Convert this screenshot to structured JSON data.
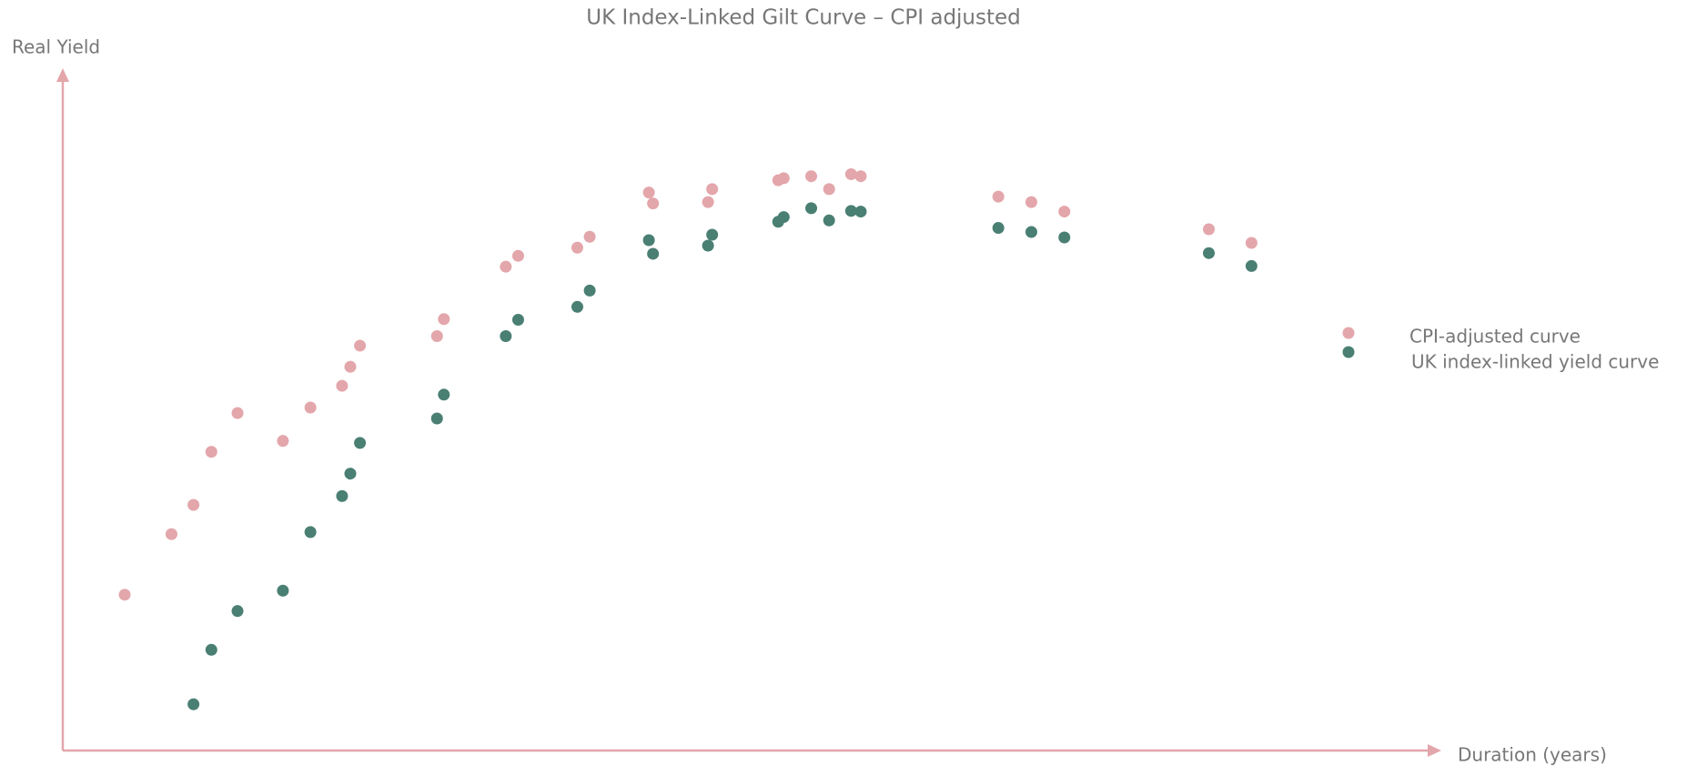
{
  "chart_data": {
    "type": "scatter",
    "title": "UK Index-Linked Gilt Curve – CPI adjusted",
    "x_label": "Duration (years)",
    "y_label": "Real Yield",
    "xlim": [
      0,
      100
    ],
    "ylim": [
      0,
      100
    ],
    "series": [
      {
        "name": "CPI-adjusted curve",
        "color": "#e3a6ab",
        "x": [
          4.5,
          7.9,
          9.5,
          10.8,
          12.7,
          16.0,
          18.0,
          20.3,
          20.9,
          21.6,
          27.2,
          27.7,
          32.2,
          33.1,
          37.4,
          38.3,
          42.6,
          42.9,
          46.9,
          47.2,
          52.0,
          52.4,
          54.4,
          55.7,
          57.3,
          58.0,
          68.0,
          70.4,
          72.8,
          83.3,
          86.4
        ],
        "values": [
          22.9,
          31.8,
          36.1,
          43.9,
          49.6,
          45.5,
          50.4,
          53.6,
          56.4,
          59.5,
          60.9,
          63.4,
          71.1,
          72.7,
          73.9,
          75.5,
          82.0,
          80.4,
          80.6,
          82.5,
          83.8,
          84.1,
          84.4,
          82.5,
          84.7,
          84.4,
          81.4,
          80.6,
          79.2,
          76.6,
          74.6
        ]
      },
      {
        "name": "UK index-linked yield curve",
        "color": "#4a7f73",
        "x": [
          9.5,
          10.8,
          12.7,
          16.0,
          18.0,
          20.3,
          20.9,
          21.6,
          27.2,
          27.7,
          32.2,
          33.1,
          37.4,
          38.3,
          42.6,
          42.9,
          46.9,
          47.2,
          52.0,
          52.4,
          54.4,
          55.7,
          57.3,
          58.0,
          68.0,
          70.4,
          72.8,
          83.3,
          86.4
        ],
        "values": [
          6.8,
          14.8,
          20.5,
          23.5,
          32.1,
          37.4,
          40.7,
          45.2,
          48.8,
          52.3,
          60.9,
          63.3,
          65.2,
          67.6,
          75.0,
          73.0,
          74.2,
          75.8,
          77.7,
          78.4,
          79.7,
          77.9,
          79.3,
          79.2,
          76.8,
          76.2,
          75.4,
          73.1,
          71.2
        ]
      }
    ]
  }
}
